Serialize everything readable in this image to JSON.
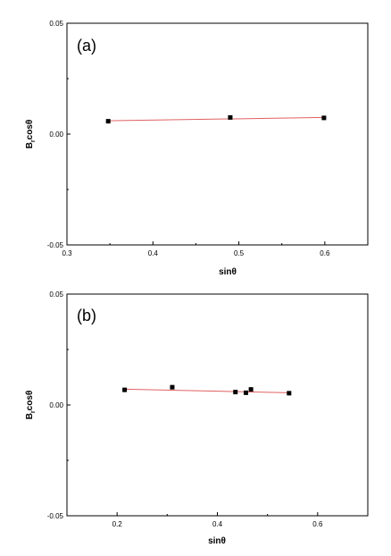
{
  "chart_data": [
    {
      "type": "scatter",
      "panel_label": "(a)",
      "xlabel": "sinθ",
      "ylabel_main": "B",
      "ylabel_sub": "r",
      "ylabel_rest": "cosθ",
      "xlim": [
        0.3,
        0.65
      ],
      "ylim": [
        -0.05,
        0.05
      ],
      "xticks": [
        0.3,
        0.4,
        0.5,
        0.6
      ],
      "xtick_labels": [
        "0.3",
        "0.4",
        "0.5",
        "0.6"
      ],
      "yticks": [
        -0.05,
        0.0,
        0.05
      ],
      "ytick_labels": [
        "-0.05",
        "0.00",
        "0.05"
      ],
      "grid": false,
      "points": {
        "x": [
          0.348,
          0.49,
          0.599
        ],
        "y": [
          0.0058,
          0.0075,
          0.0073
        ]
      },
      "fit_line": {
        "x": [
          0.348,
          0.599
        ],
        "y": [
          0.006,
          0.0075
        ]
      },
      "colors": {
        "points": "#000000",
        "fit": "#e06060"
      }
    },
    {
      "type": "scatter",
      "panel_label": "(b)",
      "xlabel": "sinθ",
      "ylabel_main": "B",
      "ylabel_sub": "r",
      "ylabel_rest": "cosθ",
      "xlim": [
        0.1,
        0.7
      ],
      "ylim": [
        -0.05,
        0.05
      ],
      "xticks": [
        0.2,
        0.4,
        0.6
      ],
      "xtick_labels": [
        "0.2",
        "0.4",
        "0.6"
      ],
      "yticks": [
        -0.05,
        0.0,
        0.05
      ],
      "ytick_labels": [
        "-0.05",
        "0.00",
        "0.05"
      ],
      "grid": false,
      "points": {
        "x": [
          0.215,
          0.31,
          0.436,
          0.457,
          0.467,
          0.543
        ],
        "y": [
          0.0068,
          0.008,
          0.0058,
          0.0055,
          0.007,
          0.0053
        ]
      },
      "fit_line": {
        "x": [
          0.215,
          0.543
        ],
        "y": [
          0.0071,
          0.0055
        ]
      },
      "colors": {
        "points": "#000000",
        "fit": "#e06060"
      }
    }
  ]
}
